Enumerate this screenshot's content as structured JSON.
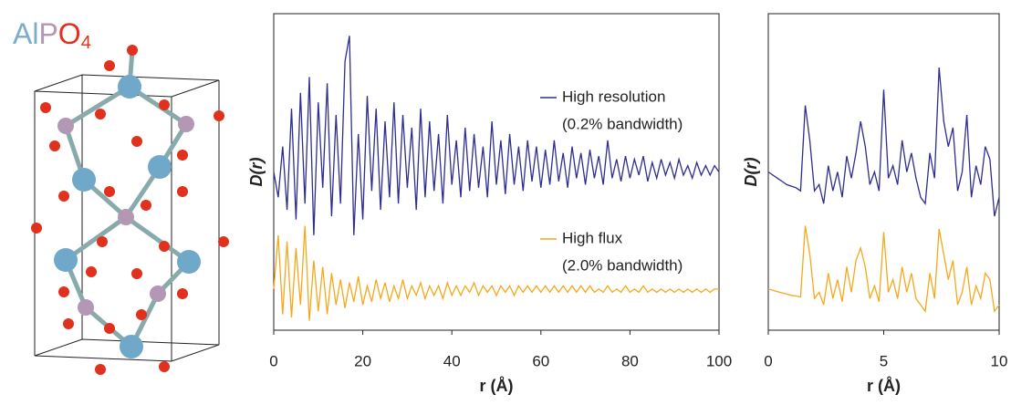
{
  "structure": {
    "formula": {
      "al": "Al",
      "p": "P",
      "o": "O",
      "sub": "4"
    }
  },
  "chart_data": [
    {
      "type": "line",
      "ylabel": "D(r)",
      "xlabel": "r (Å)",
      "xlim": [
        0,
        100
      ],
      "xticks": [
        0,
        20,
        40,
        60,
        80,
        100
      ],
      "ylim": [
        0,
        100
      ],
      "x": [
        0,
        1,
        2,
        3,
        4,
        5,
        6,
        7,
        8,
        9,
        10,
        11,
        12,
        13,
        14,
        15,
        16,
        17,
        18,
        19,
        20,
        21,
        22,
        23,
        24,
        25,
        26,
        27,
        28,
        29,
        30,
        31,
        32,
        33,
        34,
        35,
        36,
        37,
        38,
        39,
        40,
        41,
        42,
        43,
        44,
        45,
        46,
        47,
        48,
        49,
        50,
        51,
        52,
        53,
        54,
        55,
        56,
        57,
        58,
        59,
        60,
        61,
        62,
        63,
        64,
        65,
        66,
        67,
        68,
        69,
        70,
        71,
        72,
        73,
        74,
        75,
        76,
        77,
        78,
        79,
        80,
        81,
        82,
        83,
        84,
        85,
        86,
        87,
        88,
        89,
        90,
        91,
        92,
        93,
        94,
        95,
        96,
        97,
        98,
        99,
        100
      ],
      "series": [
        {
          "name": "High resolution",
          "bandwidth_label": "(0.2% bandwidth)",
          "color": "#2e2d8f",
          "values": [
            50,
            42,
            58,
            38,
            70,
            35,
            75,
            40,
            80,
            30,
            72,
            45,
            78,
            36,
            68,
            40,
            85,
            93,
            30,
            62,
            35,
            74,
            44,
            70,
            38,
            66,
            42,
            72,
            40,
            68,
            45,
            64,
            38,
            70,
            42,
            66,
            44,
            62,
            40,
            68,
            46,
            60,
            42,
            64,
            44,
            62,
            45,
            58,
            42,
            66,
            46,
            60,
            43,
            62,
            46,
            58,
            44,
            60,
            47,
            58,
            45,
            57,
            46,
            60,
            47,
            56,
            45,
            58,
            48,
            56,
            46,
            57,
            48,
            55,
            46,
            60,
            48,
            54,
            47,
            55,
            48,
            54,
            49,
            55,
            47,
            53,
            48,
            54,
            49,
            53,
            48,
            54,
            49,
            52,
            48,
            53,
            49,
            52,
            49,
            52,
            50
          ]
        },
        {
          "name": "High flux",
          "bandwidth_label": "(2.0% bandwidth)",
          "color": "#f5a81c",
          "values": [
            13,
            30,
            5,
            28,
            4,
            26,
            8,
            33,
            3,
            22,
            6,
            20,
            5,
            18,
            8,
            16,
            7,
            15,
            9,
            17,
            8,
            14,
            9,
            16,
            10,
            15,
            9,
            14,
            10,
            16,
            10,
            14,
            11,
            15,
            10,
            14,
            11,
            14,
            10,
            15,
            11,
            14,
            11,
            14,
            12,
            15,
            11,
            14,
            12,
            14,
            11,
            14,
            12,
            14,
            11,
            14,
            12,
            14,
            12,
            14,
            12,
            14,
            12,
            14,
            12,
            14,
            12,
            14,
            12,
            14,
            12,
            14,
            12,
            13,
            12,
            14,
            12,
            13,
            12,
            14,
            12,
            13,
            12,
            14,
            12,
            13,
            12,
            13,
            12,
            13,
            12,
            13,
            12,
            13,
            12,
            13,
            12,
            13,
            12,
            13,
            13
          ]
        }
      ]
    },
    {
      "type": "line",
      "ylabel": "D(r)",
      "xlabel": "r (Å)",
      "xlim": [
        0,
        10
      ],
      "xticks": [
        0,
        5,
        10
      ],
      "ylim": [
        0,
        100
      ],
      "x": [
        0,
        0.2,
        0.4,
        0.6,
        0.8,
        1,
        1.2,
        1.4,
        1.6,
        1.8,
        2,
        2.2,
        2.4,
        2.6,
        2.8,
        3,
        3.2,
        3.4,
        3.6,
        3.8,
        4,
        4.2,
        4.4,
        4.6,
        4.8,
        5,
        5.2,
        5.4,
        5.6,
        5.8,
        6,
        6.2,
        6.4,
        6.6,
        6.8,
        7,
        7.2,
        7.4,
        7.6,
        7.8,
        8,
        8.2,
        8.4,
        8.6,
        8.8,
        9,
        9.2,
        9.4,
        9.6,
        9.8,
        10
      ],
      "series": [
        {
          "color": "#2e2d8f",
          "values": [
            50,
            49,
            48,
            47,
            46,
            45.5,
            45,
            44,
            71,
            60,
            44,
            46,
            40,
            52,
            44,
            50,
            42,
            55,
            48,
            56,
            66,
            58,
            46,
            50,
            44,
            76,
            48,
            52,
            46,
            60,
            50,
            56,
            48,
            42,
            40,
            56,
            48,
            83,
            66,
            58,
            64,
            44,
            50,
            68,
            42,
            52,
            46,
            58,
            54,
            36,
            42
          ]
        },
        {
          "color": "#f5a81c",
          "values": [
            13,
            12.6,
            12.2,
            11.8,
            11.4,
            11,
            10.8,
            10.5,
            33,
            24,
            10,
            12,
            8,
            18,
            10,
            16,
            9,
            20,
            12,
            22,
            26,
            20,
            10,
            14,
            9,
            31,
            12,
            16,
            10,
            20,
            12,
            18,
            10,
            8,
            6,
            18,
            10,
            32,
            24,
            16,
            22,
            8,
            12,
            20,
            8,
            14,
            10,
            18,
            16,
            6,
            8
          ]
        }
      ]
    }
  ]
}
